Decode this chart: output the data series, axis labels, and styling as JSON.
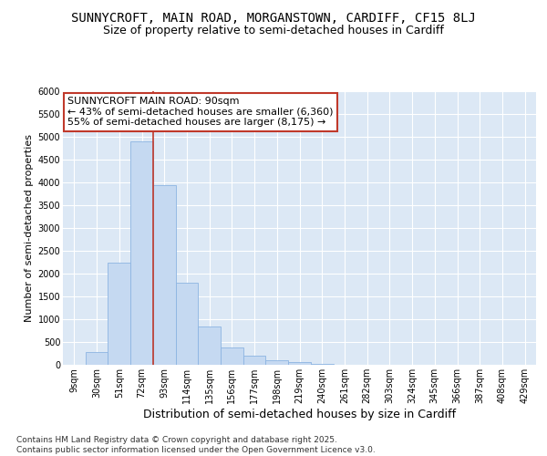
{
  "title": "SUNNYCROFT, MAIN ROAD, MORGANSTOWN, CARDIFF, CF15 8LJ",
  "subtitle": "Size of property relative to semi-detached houses in Cardiff",
  "xlabel": "Distribution of semi-detached houses by size in Cardiff",
  "ylabel": "Number of semi-detached properties",
  "categories": [
    "9sqm",
    "30sqm",
    "51sqm",
    "72sqm",
    "93sqm",
    "114sqm",
    "135sqm",
    "156sqm",
    "177sqm",
    "198sqm",
    "219sqm",
    "240sqm",
    "261sqm",
    "282sqm",
    "303sqm",
    "324sqm",
    "345sqm",
    "366sqm",
    "387sqm",
    "408sqm",
    "429sqm"
  ],
  "values": [
    0,
    280,
    2250,
    4900,
    3950,
    1800,
    850,
    380,
    210,
    95,
    60,
    20,
    8,
    4,
    2,
    0,
    0,
    0,
    0,
    0,
    0
  ],
  "bar_color": "#c5d9f1",
  "bar_edge_color": "#8cb4e2",
  "vline_color": "#c0392b",
  "vline_x": 4.0,
  "annotation_line1": "SUNNYCROFT MAIN ROAD: 90sqm",
  "annotation_line2": "← 43% of semi-detached houses are smaller (6,360)",
  "annotation_line3": "55% of semi-detached houses are larger (8,175) →",
  "annotation_box_edgecolor": "#c0392b",
  "ylim": [
    0,
    6000
  ],
  "yticks": [
    0,
    500,
    1000,
    1500,
    2000,
    2500,
    3000,
    3500,
    4000,
    4500,
    5000,
    5500,
    6000
  ],
  "grid_color": "#ffffff",
  "bg_color": "#dce8f5",
  "footer_line1": "Contains HM Land Registry data © Crown copyright and database right 2025.",
  "footer_line2": "Contains public sector information licensed under the Open Government Licence v3.0.",
  "title_fontsize": 10,
  "subtitle_fontsize": 9,
  "tick_fontsize": 7,
  "ylabel_fontsize": 8,
  "xlabel_fontsize": 9,
  "annotation_fontsize": 8,
  "footer_fontsize": 6.5
}
